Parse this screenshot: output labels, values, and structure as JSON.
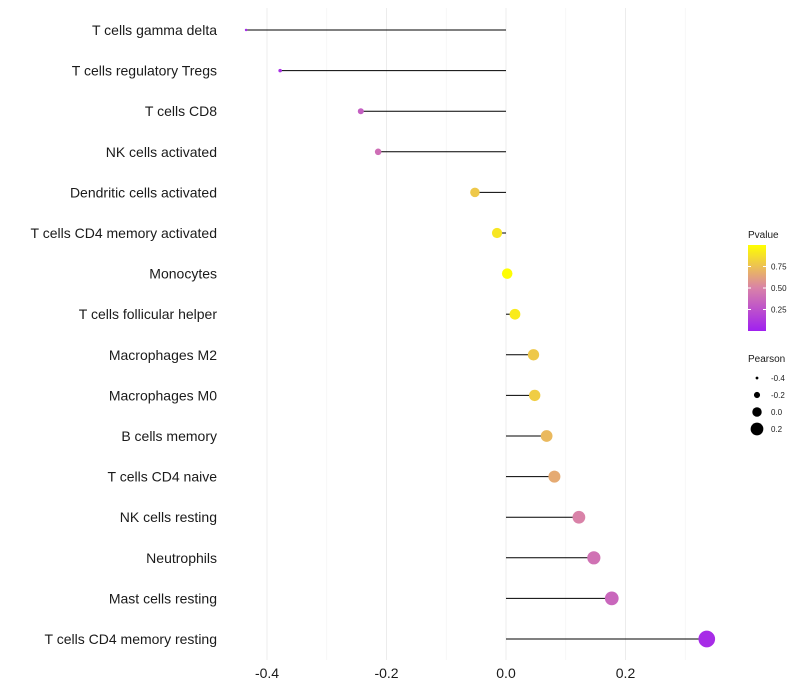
{
  "chart_data": {
    "type": "lollipop",
    "orientation": "horizontal",
    "categories": [
      "T cells gamma delta",
      "T cells regulatory  Tregs",
      "T cells CD8",
      "NK cells activated",
      "Dendritic cells activated",
      "T cells CD4 memory activated",
      "Monocytes",
      "T cells follicular helper",
      "Macrophages M2",
      "Macrophages M0",
      "B cells memory",
      "T cells CD4 naive",
      "NK cells resting",
      "Neutrophils",
      "Mast cells resting",
      "T cells CD4 memory resting"
    ],
    "pearson": [
      -0.435,
      -0.378,
      -0.243,
      -0.214,
      -0.052,
      -0.015,
      0.002,
      0.015,
      0.046,
      0.048,
      0.068,
      0.081,
      0.122,
      0.147,
      0.177,
      0.336
    ],
    "pvalue": [
      0.05,
      0.08,
      0.32,
      0.4,
      0.78,
      0.9,
      0.99,
      0.92,
      0.78,
      0.8,
      0.72,
      0.66,
      0.5,
      0.42,
      0.36,
      0.06
    ],
    "xlim": [
      -0.48,
      0.36
    ],
    "x_ticks": [
      "-0.4",
      "-0.2",
      "0.0",
      "0.2"
    ],
    "x_tick_values": [
      -0.4,
      -0.2,
      0.0,
      0.2
    ],
    "legend_color": {
      "title": "Pvalue",
      "range": [
        0,
        1
      ],
      "ticks": [
        "0.75",
        "0.50",
        "0.25"
      ],
      "tick_values": [
        0.75,
        0.5,
        0.25
      ],
      "color_low": "#a020f0",
      "color_mid": "#d982a8",
      "color_high": "#ffff00"
    },
    "legend_size": {
      "title": "Pearson",
      "labels": [
        "-0.4",
        "-0.2",
        "0.0",
        "0.2"
      ],
      "values": [
        -0.4,
        -0.2,
        0.0,
        0.2
      ]
    },
    "grid": true
  }
}
